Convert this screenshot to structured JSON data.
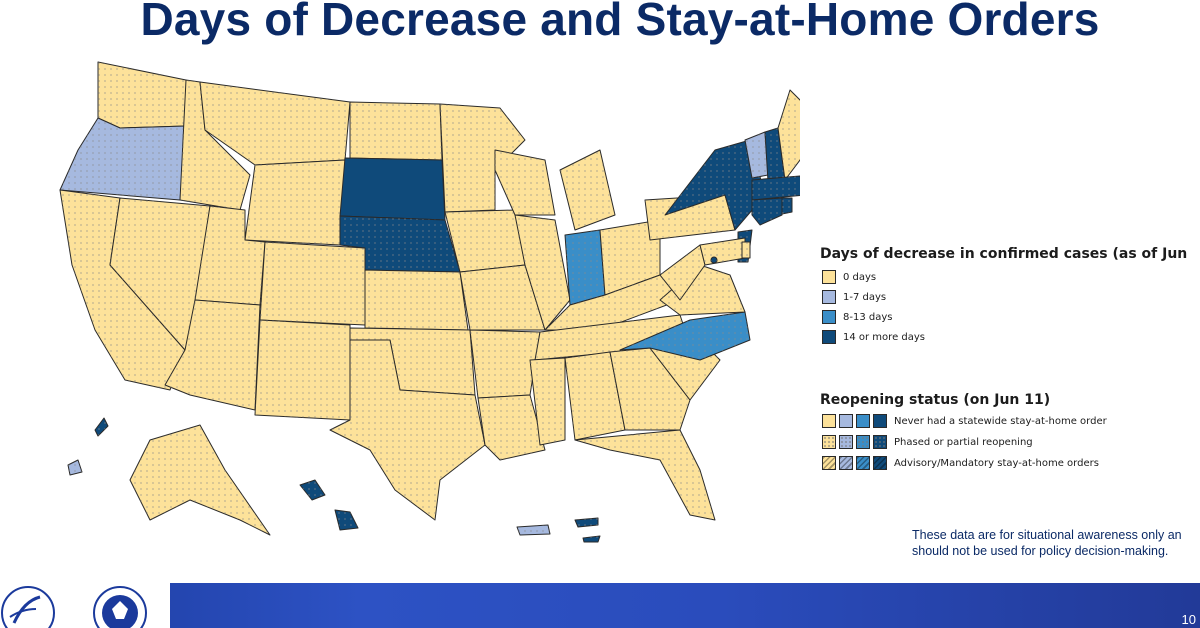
{
  "title": "Days of Decrease and Stay-at-Home Orders",
  "legend_days": {
    "heading": "Days of decrease in confirmed cases (as of Jun",
    "items": [
      {
        "label": "0 days",
        "color": "#fde29a"
      },
      {
        "label": "1-7 days",
        "color": "#a6b9df"
      },
      {
        "label": "8-13 days",
        "color": "#3a8ec8"
      },
      {
        "label": "14 or more days",
        "color": "#0f4a7a"
      }
    ]
  },
  "legend_status": {
    "heading": "Reopening status (on Jun 11)",
    "items": [
      {
        "label": "Never had a statewide stay-at-home order",
        "pattern": "solid"
      },
      {
        "label": "Phased or partial reopening",
        "pattern": "dotted"
      },
      {
        "label": "Advisory/Mandatory stay-at-home orders",
        "pattern": "hatched"
      }
    ]
  },
  "disclaimer": {
    "line1": "These data are for situational awareness only an",
    "line2": "should not be used for policy decision-making."
  },
  "footer": {
    "page_number": "10",
    "logos": [
      "hhs-seal-icon",
      "dhs-seal-icon"
    ]
  },
  "map": {
    "category_colors": {
      "0": "#fde29a",
      "1": "#a6b9df",
      "2": "#3a8ec8",
      "3": "#0f4a7a"
    },
    "highlighted_states": [
      {
        "state": "Oregon",
        "category": "1-7 days",
        "status": "Phased or partial reopening"
      },
      {
        "state": "Vermont",
        "category": "1-7 days",
        "status": "Phased or partial reopening"
      },
      {
        "state": "Puerto Rico",
        "category": "1-7 days",
        "status": "Phased or partial reopening"
      },
      {
        "state": "Indiana",
        "category": "8-13 days",
        "status": "Phased or partial reopening"
      },
      {
        "state": "North Carolina",
        "category": "8-13 days",
        "status": "Phased or partial reopening"
      },
      {
        "state": "South Dakota",
        "category": "14 or more days",
        "status": "Never had a statewide stay-at-home order"
      },
      {
        "state": "Nebraska",
        "category": "14 or more days",
        "status": "Phased or partial reopening"
      },
      {
        "state": "New York",
        "category": "14 or more days",
        "status": "Phased or partial reopening"
      },
      {
        "state": "New Hampshire",
        "category": "14 or more days",
        "status": "Phased or partial reopening"
      },
      {
        "state": "Massachusetts",
        "category": "14 or more days",
        "status": "Phased or partial reopening"
      },
      {
        "state": "Connecticut",
        "category": "14 or more days",
        "status": "Phased or partial reopening"
      },
      {
        "state": "Rhode Island",
        "category": "14 or more days",
        "status": "Phased or partial reopening"
      },
      {
        "state": "New Jersey",
        "category": "14 or more days",
        "status": "Phased or partial reopening"
      },
      {
        "state": "District of Columbia",
        "category": "14 or more days",
        "status": "Phased or partial reopening"
      },
      {
        "state": "Hawaii",
        "category": "14 or more days",
        "status": "Phased or partial reopening"
      },
      {
        "state": "Northern Mariana Islands",
        "category": "14 or more days",
        "status": "Phased or partial reopening"
      },
      {
        "state": "Virgin Islands",
        "category": "14 or more days",
        "status": "Phased or partial reopening"
      },
      {
        "state": "Guam",
        "category": "1-7 days",
        "status": "Phased or partial reopening"
      }
    ],
    "default_category": "0 days",
    "default_status": "Phased or partial reopening"
  }
}
